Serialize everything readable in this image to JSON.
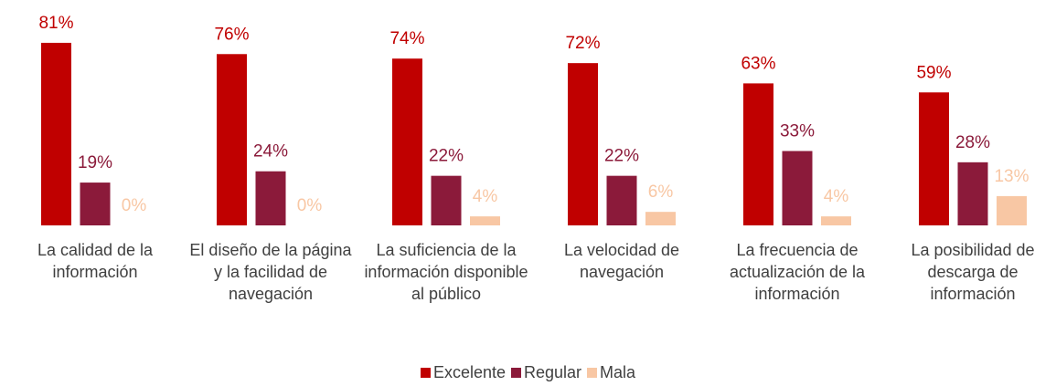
{
  "chart_data": {
    "type": "bar",
    "categories": [
      "La calidad de la información",
      "El diseño de la página y la facilidad de navegación",
      "La suficiencia de la información disponible al público",
      "La velocidad de navegación",
      "La frecuencia de actualización de la información",
      "La posibilidad de descarga de información"
    ],
    "series": [
      {
        "name": "Excelente",
        "color": "#c00000",
        "values": [
          81,
          76,
          74,
          72,
          63,
          59
        ],
        "value_labels": [
          "81%",
          "76%",
          "74%",
          "72%",
          "63%",
          "59%"
        ]
      },
      {
        "name": "Regular",
        "color": "#8b1a3a",
        "values": [
          19,
          24,
          22,
          22,
          33,
          28
        ],
        "value_labels": [
          "19%",
          "24%",
          "22%",
          "22%",
          "33%",
          "28%"
        ]
      },
      {
        "name": "Mala",
        "color": "#f8c7a4",
        "values": [
          0,
          0,
          4,
          6,
          4,
          13
        ],
        "value_labels": [
          "0%",
          "0%",
          "4%",
          "6%",
          "4%",
          "13%"
        ]
      }
    ],
    "legend": "bottom"
  }
}
